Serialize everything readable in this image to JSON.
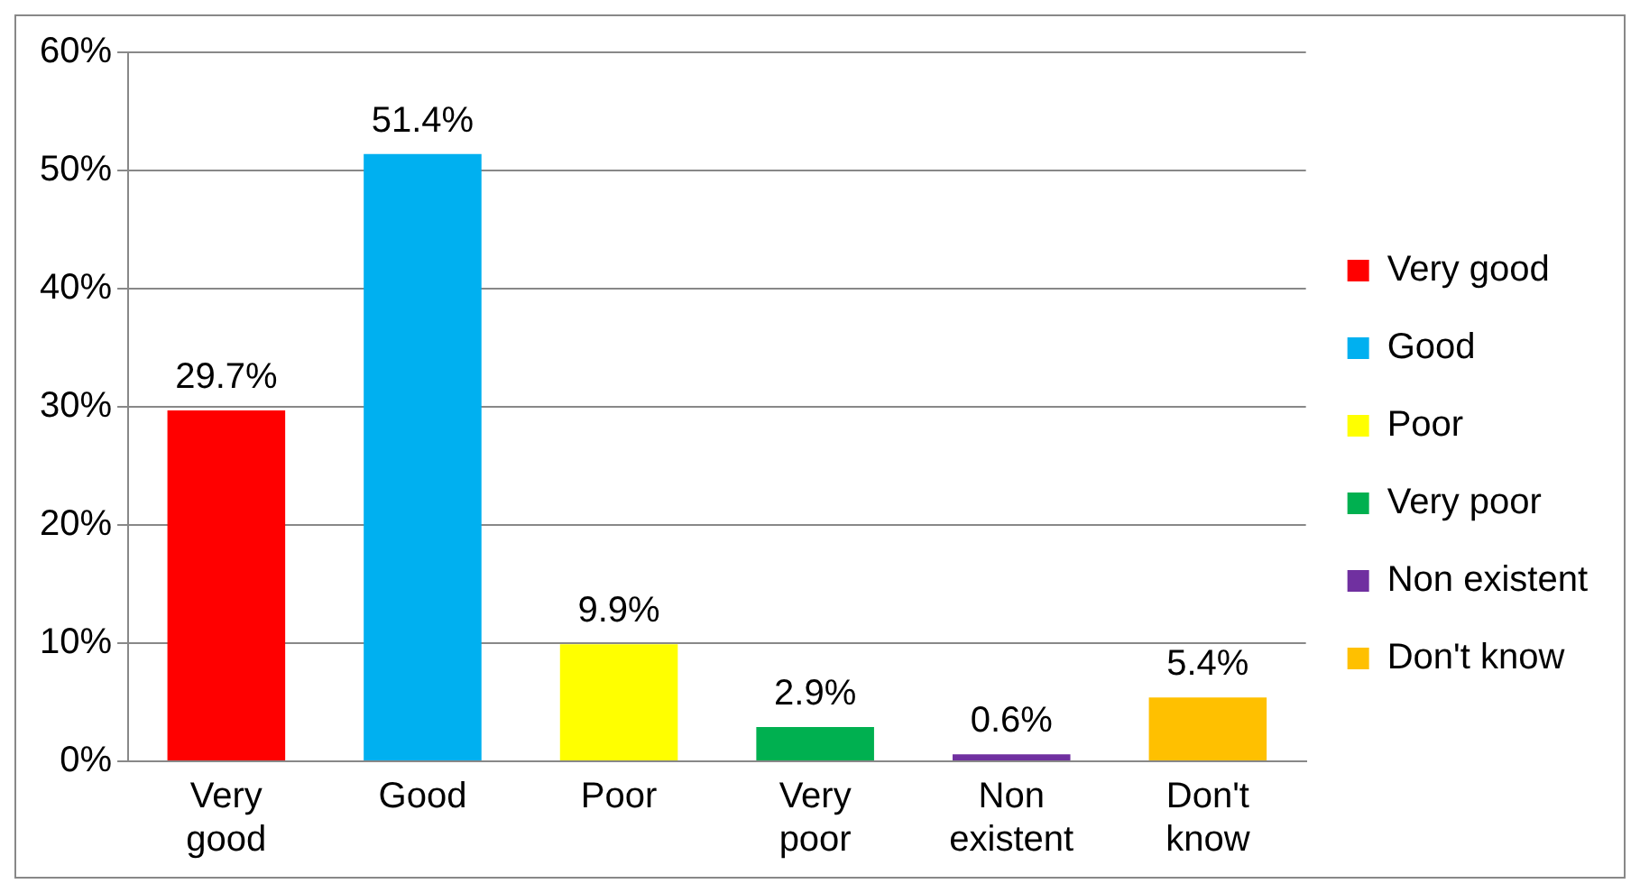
{
  "chart_data": {
    "type": "bar",
    "categories": [
      "Very good",
      "Good",
      "Poor",
      "Very poor",
      "Non existent",
      "Don't know"
    ],
    "series": [
      {
        "name": "Very good",
        "color": "#ff0000",
        "values": [
          29.7,
          null,
          null,
          null,
          null,
          null
        ],
        "value_labels": [
          "29.7%",
          null,
          null,
          null,
          null,
          null
        ]
      },
      {
        "name": "Good",
        "color": "#00b0f0",
        "values": [
          null,
          51.4,
          null,
          null,
          null,
          null
        ],
        "value_labels": [
          null,
          "51.4%",
          null,
          null,
          null,
          null
        ]
      },
      {
        "name": "Poor",
        "color": "#ffff00",
        "values": [
          null,
          null,
          9.9,
          null,
          null,
          null
        ],
        "value_labels": [
          null,
          null,
          "9.9%",
          null,
          null,
          null
        ]
      },
      {
        "name": "Very poor",
        "color": "#00b050",
        "values": [
          null,
          null,
          null,
          2.9,
          null,
          null
        ],
        "value_labels": [
          null,
          null,
          null,
          "2.9%",
          null,
          null
        ]
      },
      {
        "name": "Non existent",
        "color": "#7030a0",
        "values": [
          null,
          null,
          null,
          null,
          0.6,
          null
        ],
        "value_labels": [
          null,
          null,
          null,
          null,
          "0.6%",
          null
        ]
      },
      {
        "name": "Don't know",
        "color": "#ffc000",
        "values": [
          null,
          null,
          null,
          null,
          null,
          5.4
        ],
        "value_labels": [
          null,
          null,
          null,
          null,
          null,
          "5.4%"
        ]
      }
    ],
    "ylim": [
      0,
      60
    ],
    "yticks": [
      {
        "value": 0,
        "label": "0%"
      },
      {
        "value": 10,
        "label": "10%"
      },
      {
        "value": 20,
        "label": "20%"
      },
      {
        "value": 30,
        "label": "30%"
      },
      {
        "value": 40,
        "label": "40%"
      },
      {
        "value": 50,
        "label": "50%"
      },
      {
        "value": 60,
        "label": "60%"
      }
    ],
    "grid": "y",
    "legend": "right"
  }
}
